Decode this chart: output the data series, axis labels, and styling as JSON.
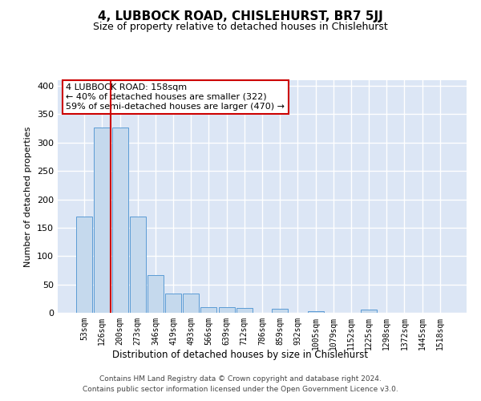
{
  "title": "4, LUBBOCK ROAD, CHISLEHURST, BR7 5JJ",
  "subtitle": "Size of property relative to detached houses in Chislehurst",
  "xlabel": "Distribution of detached houses by size in Chislehurst",
  "ylabel": "Number of detached properties",
  "categories": [
    "53sqm",
    "126sqm",
    "200sqm",
    "273sqm",
    "346sqm",
    "419sqm",
    "493sqm",
    "566sqm",
    "639sqm",
    "712sqm",
    "786sqm",
    "859sqm",
    "932sqm",
    "1005sqm",
    "1079sqm",
    "1152sqm",
    "1225sqm",
    "1298sqm",
    "1372sqm",
    "1445sqm",
    "1518sqm"
  ],
  "values": [
    170,
    327,
    327,
    170,
    67,
    34,
    34,
    10,
    10,
    8,
    0,
    7,
    0,
    3,
    0,
    0,
    5,
    0,
    0,
    0,
    0
  ],
  "bar_color": "#c5d9ed",
  "bar_edge_color": "#5b9bd5",
  "background_color": "#dce6f5",
  "grid_color": "#ffffff",
  "vline_color": "#cc0000",
  "vline_pos": 1.5,
  "annotation_text": "4 LUBBOCK ROAD: 158sqm\n← 40% of detached houses are smaller (322)\n59% of semi-detached houses are larger (470) →",
  "annotation_box_color": "#ffffff",
  "annotation_box_edge": "#cc0000",
  "ylim": [
    0,
    410
  ],
  "yticks": [
    0,
    50,
    100,
    150,
    200,
    250,
    300,
    350,
    400
  ],
  "footer_line1": "Contains HM Land Registry data © Crown copyright and database right 2024.",
  "footer_line2": "Contains public sector information licensed under the Open Government Licence v3.0."
}
